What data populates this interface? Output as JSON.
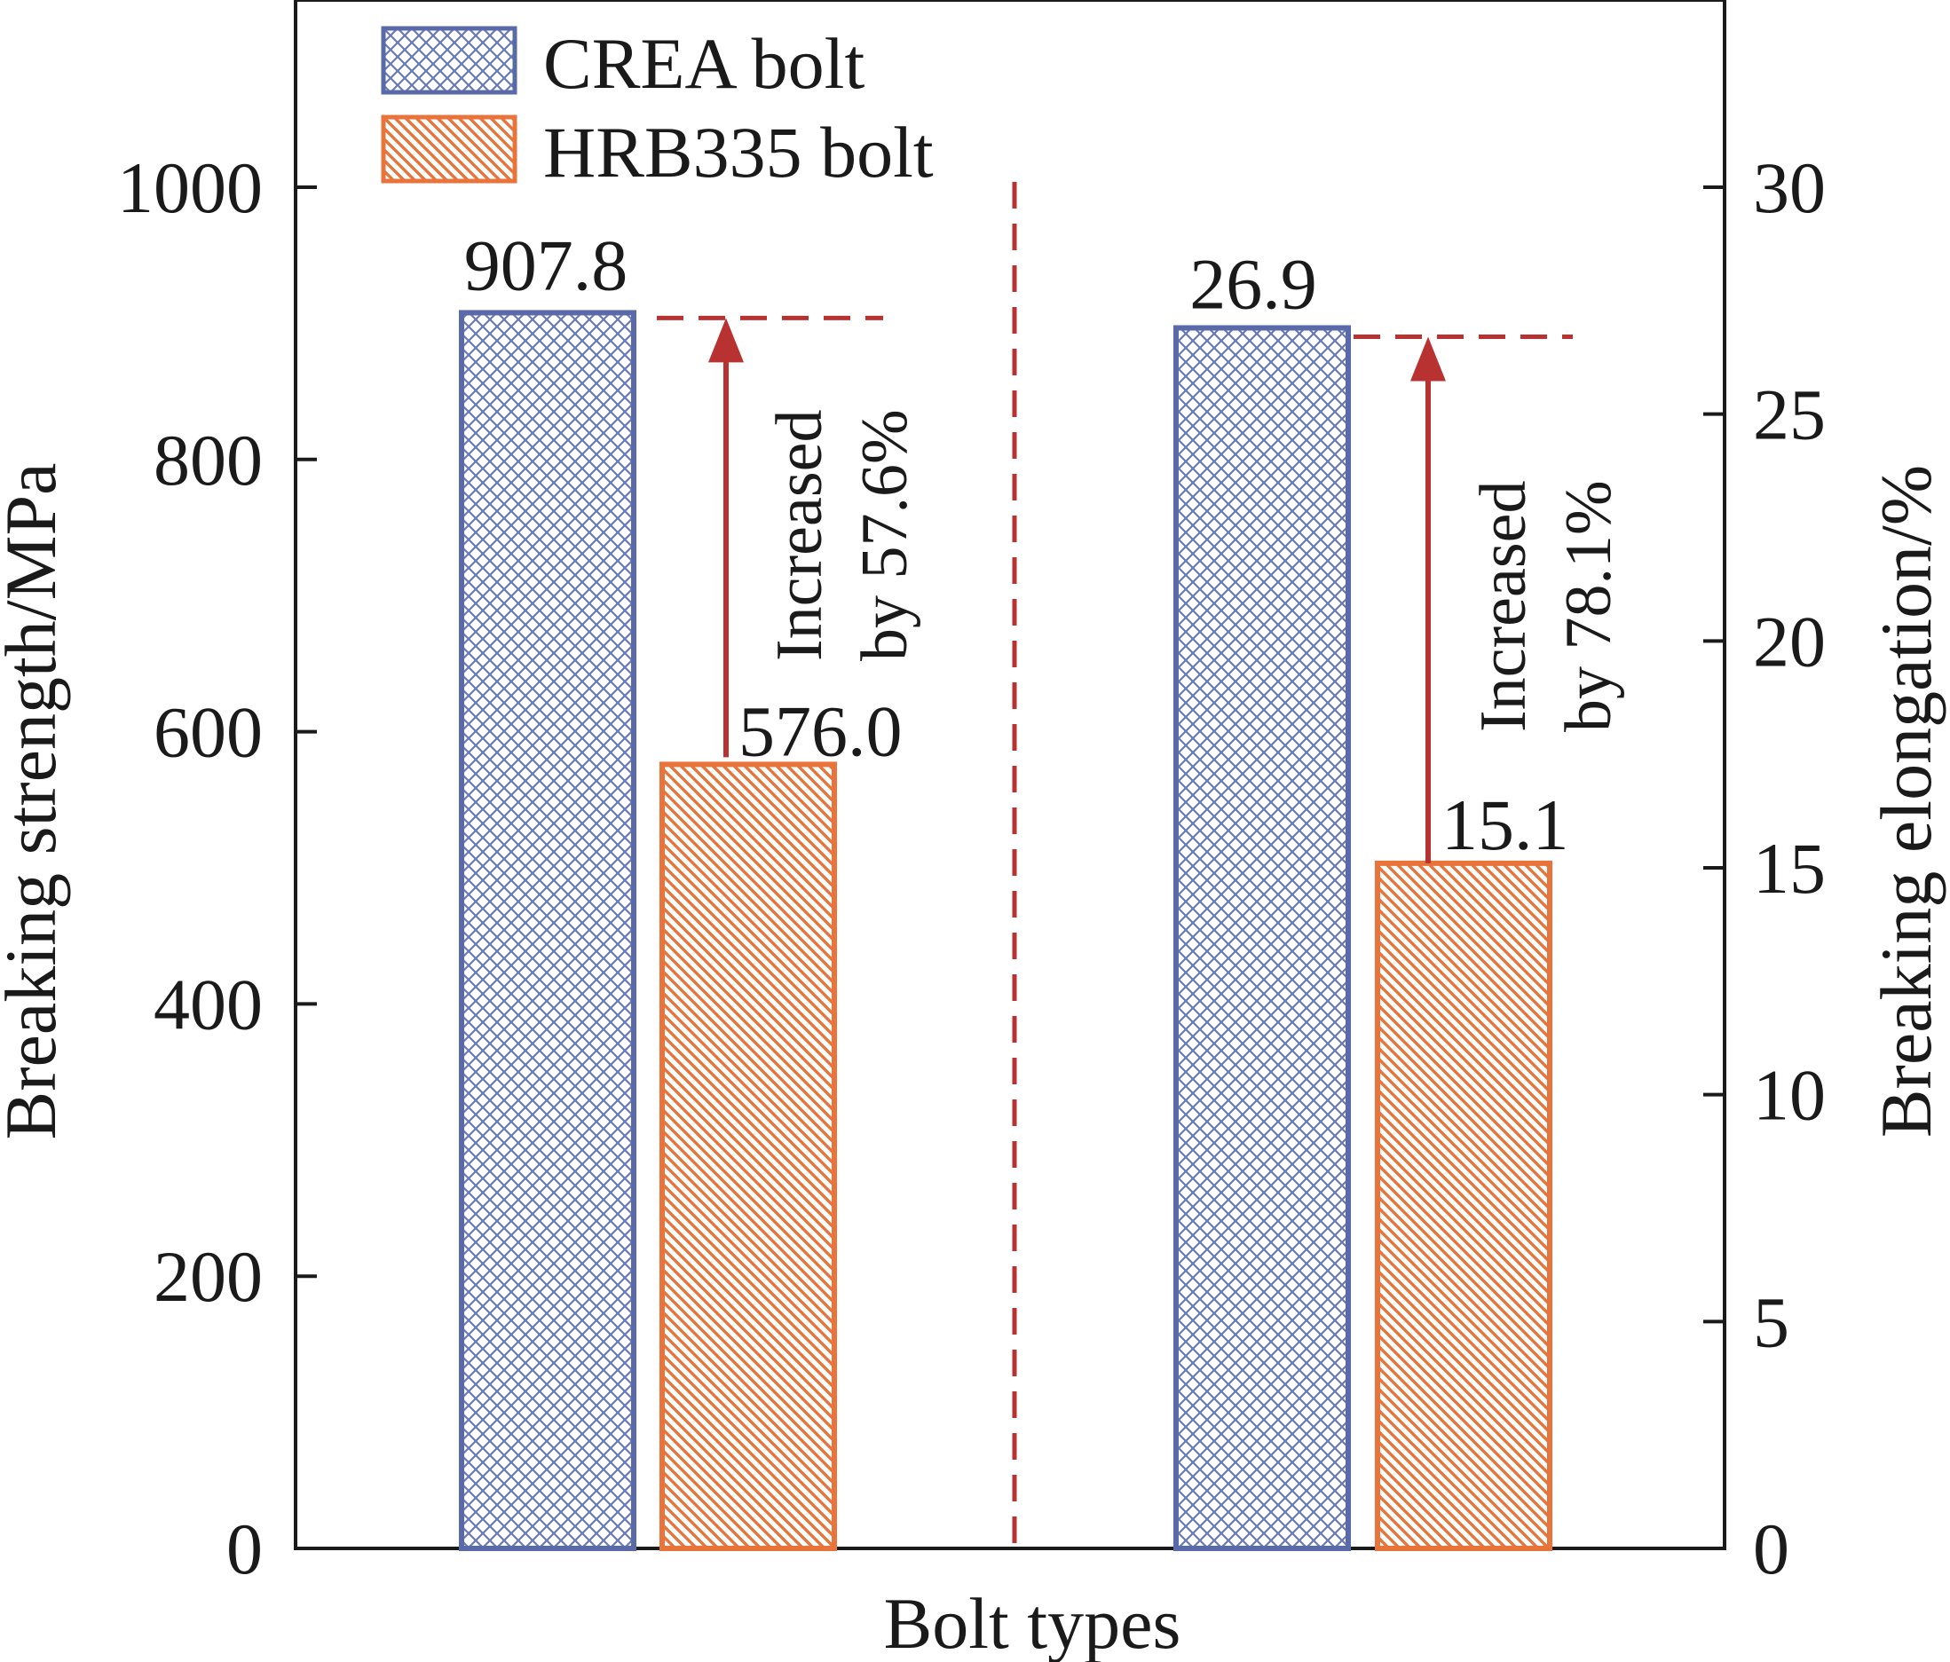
{
  "chart_data": {
    "type": "bar",
    "xlabel": "Bolt types",
    "y_left": {
      "label": "Breaking strength/MPa",
      "range": [
        0,
        1100
      ],
      "ticks": [
        0,
        200,
        400,
        600,
        800,
        1000
      ]
    },
    "y_right": {
      "label": "Breaking elongation/%",
      "range": [
        0,
        33
      ],
      "ticks": [
        0,
        5,
        10,
        15,
        20,
        25,
        30
      ]
    },
    "grid": false,
    "legend_placement": "top-left",
    "series": [
      {
        "name": "CREA bolt",
        "color": "#5a6aa8",
        "fill_pattern": "crosshatch",
        "strength": 907.8,
        "elongation": 26.9,
        "strength_label": "907.8",
        "elongation_label": "26.9"
      },
      {
        "name": "HRB335 bolt",
        "color": "#e8743b",
        "fill_pattern": "diagonal",
        "strength": 576.0,
        "elongation": 15.1,
        "strength_label": "576.0",
        "elongation_label": "15.1"
      }
    ],
    "annotations": [
      {
        "group": "strength",
        "lines": [
          "Increased",
          "by 57.6%"
        ]
      },
      {
        "group": "elongation",
        "lines": [
          "Increased",
          "by 78.1%"
        ]
      }
    ],
    "accent_color": "#b83232"
  }
}
